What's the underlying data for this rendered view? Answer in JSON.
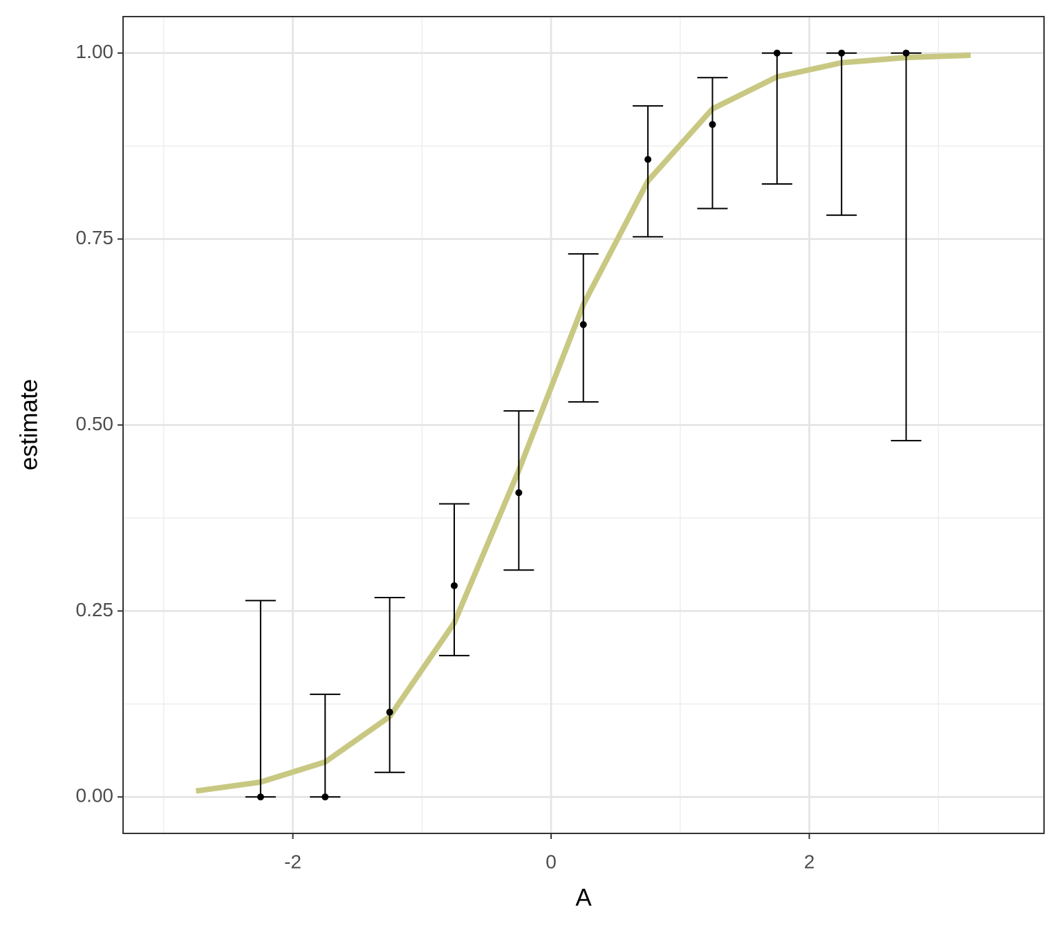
{
  "chart_data": {
    "type": "errorbar",
    "x_label": "A",
    "y_label": "estimate",
    "x": [
      -2.25,
      -1.75,
      -1.25,
      -0.75,
      -0.25,
      0.25,
      0.75,
      1.25,
      1.75,
      2.25,
      2.75
    ],
    "estimate": [
      0,
      0,
      0.114,
      0.284,
      0.409,
      0.635,
      0.857,
      0.904,
      1,
      1,
      1
    ],
    "lower": [
      0,
      0,
      0.033,
      0.19,
      0.305,
      0.531,
      0.753,
      0.791,
      0.824,
      0.782,
      0.479
    ],
    "upper": [
      0.264,
      0.138,
      0.268,
      0.394,
      0.519,
      0.73,
      0.929,
      0.967,
      1,
      1,
      1
    ],
    "point_color": "#000000",
    "fit": {
      "color": "#c8c882",
      "x": [
        -2.75,
        -2.25,
        -1.75,
        -1.25,
        -0.75,
        -0.25,
        0.25,
        0.75,
        1.25,
        1.75,
        2.25,
        2.75,
        3.25
      ],
      "values": [
        0.008,
        0.02,
        0.047,
        0.108,
        0.234,
        0.439,
        0.662,
        0.828,
        0.925,
        0.968,
        0.987,
        0.994,
        0.997
      ]
    },
    "xlim": [
      -3.315,
      3.818
    ],
    "ylim": [
      -0.049,
      1.049
    ],
    "xticks": [
      -2,
      0,
      2
    ],
    "yticks": [
      {
        "value": 0,
        "label": "0.00"
      },
      {
        "value": 0.25,
        "label": "0.25"
      },
      {
        "value": 0.5,
        "label": "0.50"
      },
      {
        "value": 0.75,
        "label": "0.75"
      },
      {
        "value": 1,
        "label": "1.00"
      }
    ],
    "xminor": [
      -3,
      -1,
      1,
      3
    ],
    "yminor": [
      0.125,
      0.375,
      0.625,
      0.875
    ],
    "grid": true
  }
}
